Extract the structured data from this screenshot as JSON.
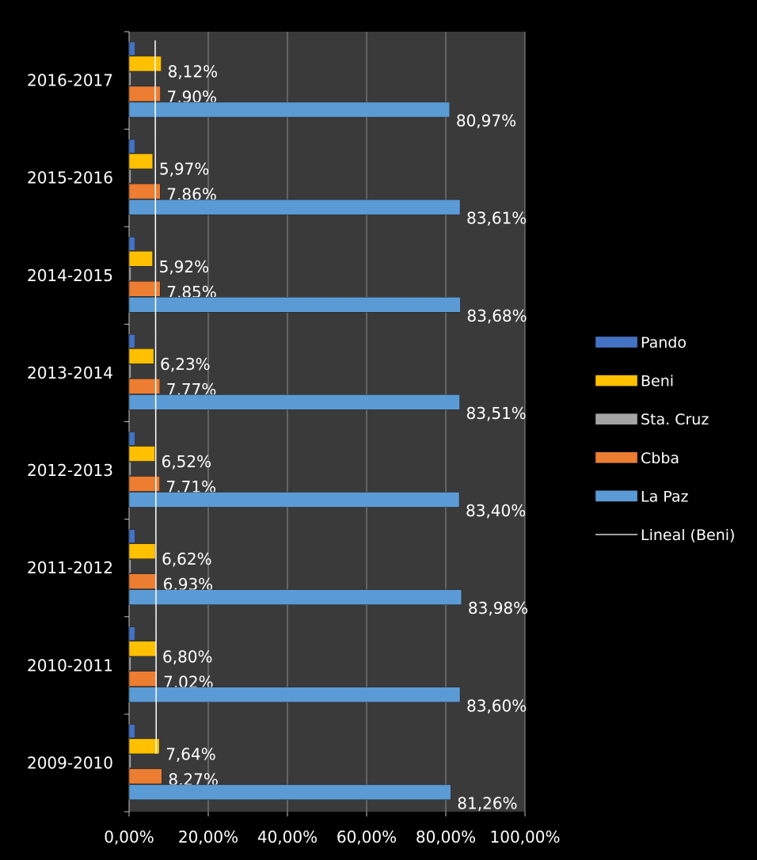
{
  "chart_data": {
    "type": "bar",
    "orientation": "horizontal",
    "categories": [
      "2009-2010",
      "2010-2011",
      "2011-2012",
      "2012-2013",
      "2013-2014",
      "2014-2015",
      "2015-2016",
      "2016-2017"
    ],
    "series": [
      {
        "name": "Pando",
        "color": "#4472c4",
        "values": [
          1.5,
          1.5,
          1.5,
          1.5,
          1.5,
          1.5,
          1.5,
          1.5
        ]
      },
      {
        "name": "Beni",
        "color": "#ffc000",
        "values": [
          7.64,
          6.8,
          6.62,
          6.52,
          6.23,
          5.92,
          5.97,
          8.12
        ],
        "labels": [
          "7,64%",
          "6,80%",
          "6,62%",
          "6,52%",
          "6,23%",
          "5,92%",
          "5,97%",
          "8,12%"
        ]
      },
      {
        "name": "Sta. Cruz",
        "color": "#a5a5a5",
        "values": [
          0.5,
          0.5,
          0.5,
          0.5,
          0.5,
          0.5,
          0.5,
          0.5
        ]
      },
      {
        "name": "Cbba",
        "color": "#ed7d31",
        "values": [
          8.27,
          7.02,
          6.93,
          7.71,
          7.77,
          7.85,
          7.86,
          7.9
        ],
        "labels": [
          "8,27%",
          "7,02%",
          "6,93%",
          "7,71%",
          "7,77%",
          "7,85%",
          "7,86%",
          "7,90%"
        ]
      },
      {
        "name": "La Paz",
        "color": "#5b9bd5",
        "values": [
          81.26,
          83.6,
          83.98,
          83.4,
          83.51,
          83.68,
          83.61,
          80.97
        ],
        "labels": [
          "81,26%",
          "83,60%",
          "83,98%",
          "83,40%",
          "83,51%",
          "83,68%",
          "83,61%",
          "80,97%"
        ]
      }
    ],
    "trendline": {
      "name": "Lineal (Beni)",
      "series": "Beni",
      "color": "#ffffff"
    },
    "xlim": [
      0,
      100
    ],
    "xticks": [
      "0,00%",
      "20,00%",
      "40,00%",
      "60,00%",
      "80,00%",
      "100,00%"
    ],
    "grid": true,
    "legend_position": "right",
    "background": "#000000",
    "plot_background": "#3a3a3a"
  }
}
